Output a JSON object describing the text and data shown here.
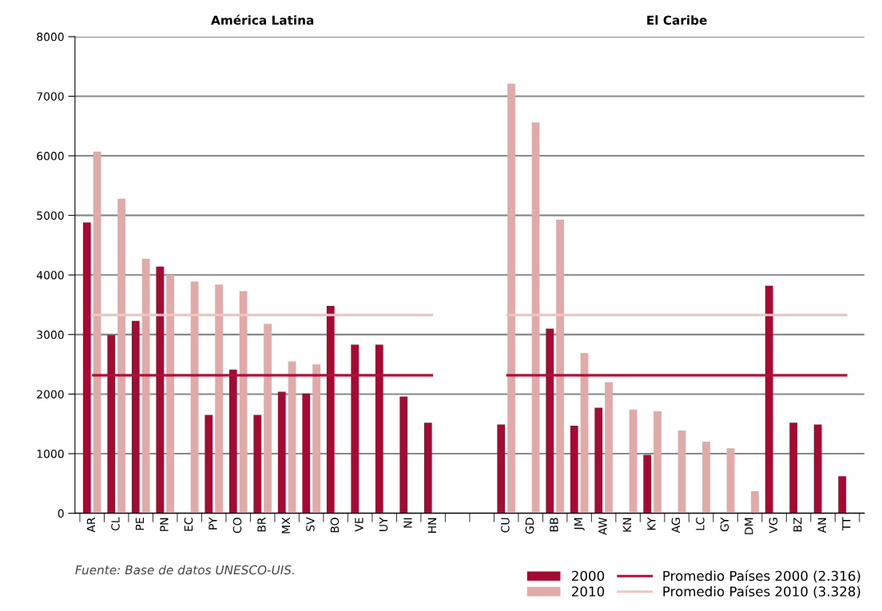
{
  "chart_data": {
    "type": "bar",
    "categories": [
      "AR",
      "CL",
      "PE",
      "PN",
      "EC",
      "PY",
      "CO",
      "BR",
      "MX",
      "SV",
      "BO",
      "VE",
      "UY",
      "NI",
      "HN",
      null,
      null,
      "CU",
      "GD",
      "BB",
      "JM",
      "AW",
      "KN",
      "KY",
      "AG",
      "LC",
      "GY",
      "DM",
      "VG",
      "BZ",
      "AN",
      "TT"
    ],
    "series": [
      {
        "name": "2000",
        "color": "#a50a33",
        "values": [
          4880,
          2990,
          3230,
          4140,
          null,
          1650,
          2410,
          1650,
          2040,
          2010,
          3480,
          2830,
          2830,
          1960,
          1520,
          null,
          null,
          1490,
          null,
          3100,
          1470,
          1770,
          null,
          980,
          null,
          null,
          null,
          null,
          3820,
          1520,
          1490,
          620
        ]
      },
      {
        "name": "2010",
        "color": "#e0aaa8",
        "values": [
          6070,
          5280,
          4270,
          4000,
          3890,
          3840,
          3730,
          3180,
          2550,
          2500,
          null,
          null,
          null,
          null,
          null,
          null,
          null,
          7210,
          6560,
          4930,
          2690,
          2200,
          1740,
          1710,
          1390,
          1200,
          1090,
          370,
          null,
          null,
          null,
          null
        ]
      },
      {
        "name": "Promedio Países 2000 (2.316)",
        "type": "line",
        "color": "#b0103a",
        "values": [
          2316,
          2316,
          2316,
          2316,
          2316,
          2316,
          2316,
          2316,
          2316,
          2316,
          2316,
          2316,
          2316,
          2316,
          2316,
          null,
          null,
          2316,
          2316,
          2316,
          2316,
          2316,
          2316,
          2316,
          2316,
          2316,
          2316,
          2316,
          2316,
          2316,
          2316,
          2316
        ]
      },
      {
        "name": "Promedio Países 2010 (3.328)",
        "type": "line",
        "color": "#f2c4c0",
        "values": [
          3328,
          3328,
          3328,
          3328,
          3328,
          3328,
          3328,
          3328,
          3328,
          3328,
          3328,
          3328,
          3328,
          3328,
          3328,
          null,
          null,
          3328,
          3328,
          3328,
          3328,
          3328,
          3328,
          3328,
          3328,
          3328,
          3328,
          3328,
          3328,
          3328,
          3328,
          3328
        ]
      }
    ],
    "ylim": [
      0,
      8000
    ],
    "yticks": [
      0,
      1000,
      2000,
      3000,
      4000,
      5000,
      6000,
      7000,
      8000
    ],
    "grid": "y",
    "legend": "bottom right",
    "annotations": [
      "América Latina",
      "El Caribe",
      "Fuente: Base de datos UNESCO-UIS."
    ]
  }
}
